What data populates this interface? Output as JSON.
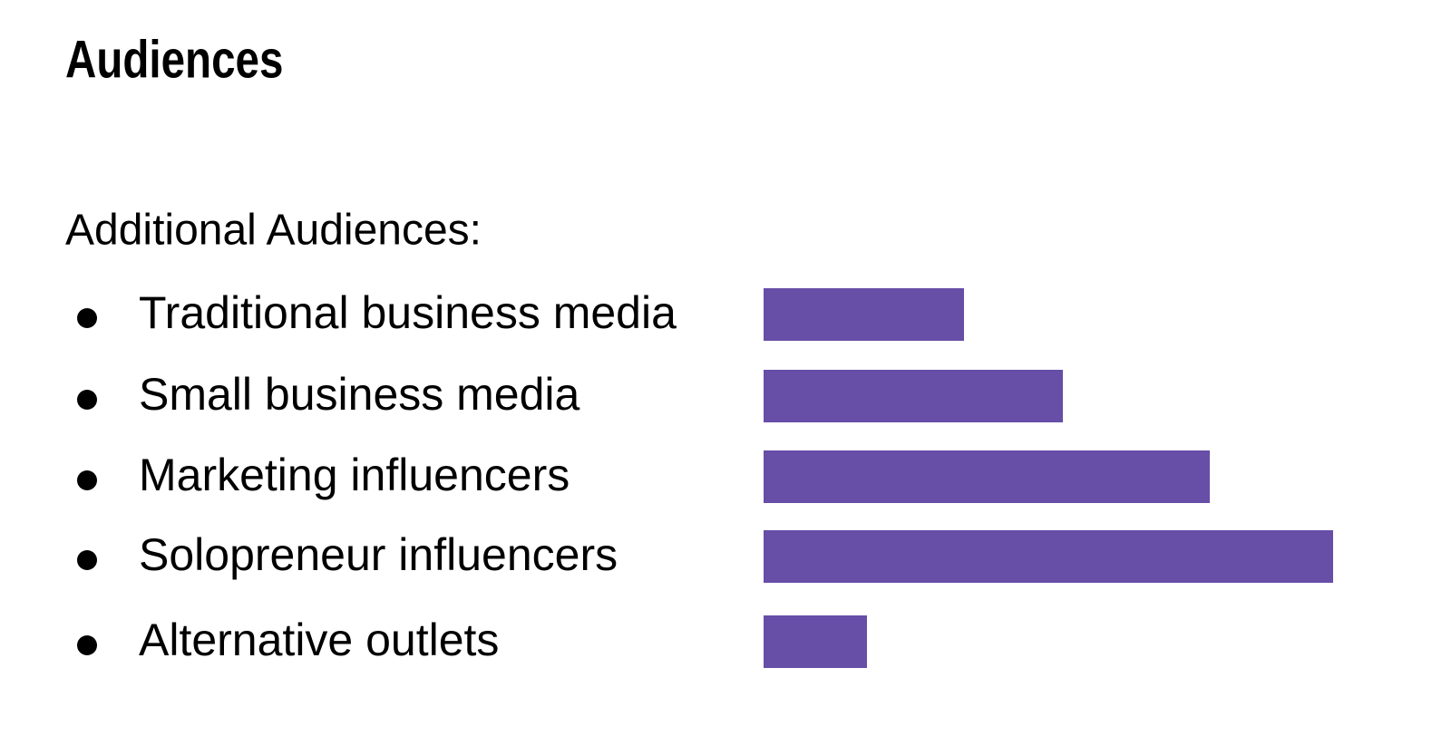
{
  "title": "Audiences",
  "subtitle": "Additional Audiences:",
  "chart_data": {
    "type": "bar",
    "orientation": "horizontal",
    "categories": [
      "Traditional business media",
      "Small business media",
      "Marketing influencers",
      "Solopreneur influencers",
      "Alternative outlets"
    ],
    "values": [
      221,
      330,
      492,
      628,
      114
    ],
    "color": "#674ea7"
  }
}
